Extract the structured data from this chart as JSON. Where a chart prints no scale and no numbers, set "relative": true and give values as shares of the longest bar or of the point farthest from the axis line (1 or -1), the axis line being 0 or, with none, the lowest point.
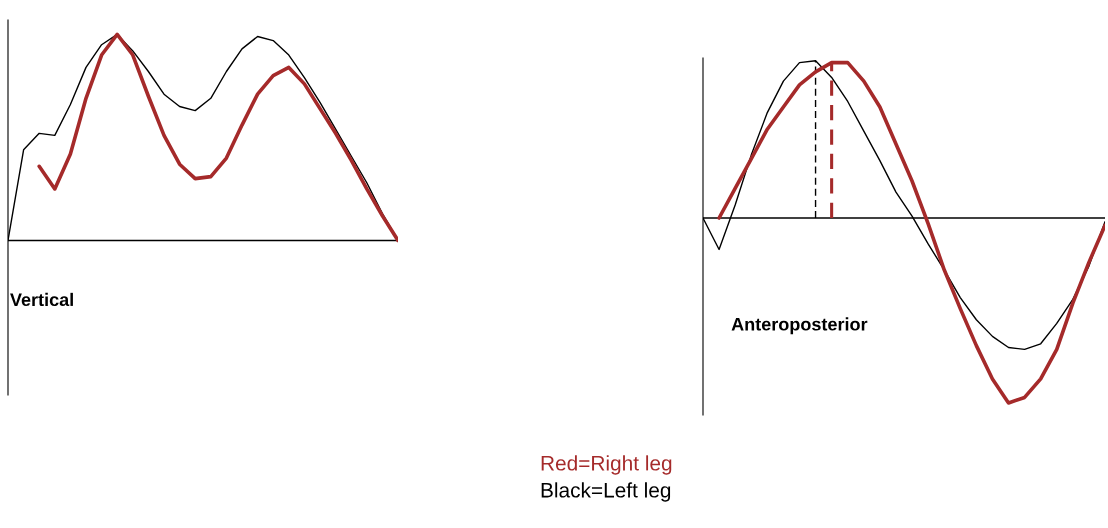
{
  "chart_data": [
    {
      "type": "line",
      "title": "Vertical",
      "relative": true,
      "categories": [
        null,
        null,
        null,
        null,
        null,
        null,
        null,
        null,
        null,
        null,
        null,
        null,
        null,
        null,
        null,
        null,
        null,
        null,
        null,
        null,
        null,
        null,
        null,
        null,
        null,
        null
      ],
      "series": [
        {
          "color": "#000000",
          "values": [
            0,
            0.44,
            0.52,
            0.51,
            0.66,
            0.84,
            0.95,
            1.0,
            0.92,
            0.82,
            0.71,
            0.65,
            0.63,
            0.69,
            0.82,
            0.93,
            0.99,
            0.97,
            0.9,
            0.79,
            0.67,
            0.54,
            0.41,
            0.28,
            0.13,
            0
          ]
        },
        {
          "color": "#a52a2a",
          "values": [
            null,
            null,
            0.36,
            0.25,
            0.42,
            0.69,
            0.9,
            1.0,
            0.9,
            0.7,
            0.51,
            0.37,
            0.3,
            0.31,
            0.4,
            0.56,
            0.71,
            0.8,
            0.84,
            0.76,
            0.64,
            0.52,
            0.39,
            0.25,
            0.12,
            0
          ]
        }
      ]
    },
    {
      "type": "line",
      "title": "Anteroposterior",
      "relative": true,
      "categories": [
        null,
        null,
        null,
        null,
        null,
        null,
        null,
        null,
        null,
        null,
        null,
        null,
        null,
        null,
        null,
        null,
        null,
        null,
        null,
        null,
        null,
        null,
        null,
        null,
        null,
        null
      ],
      "series": [
        {
          "name": "Black=Left leg",
          "color": "#000000",
          "values": [
            0,
            -0.17,
            0.07,
            0.34,
            0.57,
            0.74,
            0.84,
            0.85,
            0.76,
            0.63,
            0.47,
            0.31,
            0.14,
            0.01,
            -0.14,
            -0.28,
            -0.43,
            -0.55,
            -0.64,
            -0.7,
            -0.71,
            -0.68,
            -0.57,
            -0.44,
            -0.26,
            -0.02
          ]
        },
        {
          "name": "Red=Right leg",
          "color": "#a52a2a",
          "values": [
            null,
            0,
            0.16,
            0.32,
            0.48,
            0.6,
            0.72,
            0.79,
            0.84,
            0.84,
            0.74,
            0.6,
            0.4,
            0.2,
            -0.03,
            -0.28,
            -0.49,
            -0.69,
            -0.87,
            -1.0,
            -0.97,
            -0.87,
            -0.71,
            -0.46,
            -0.24,
            -0.04
          ]
        }
      ]
    }
  ]
}
